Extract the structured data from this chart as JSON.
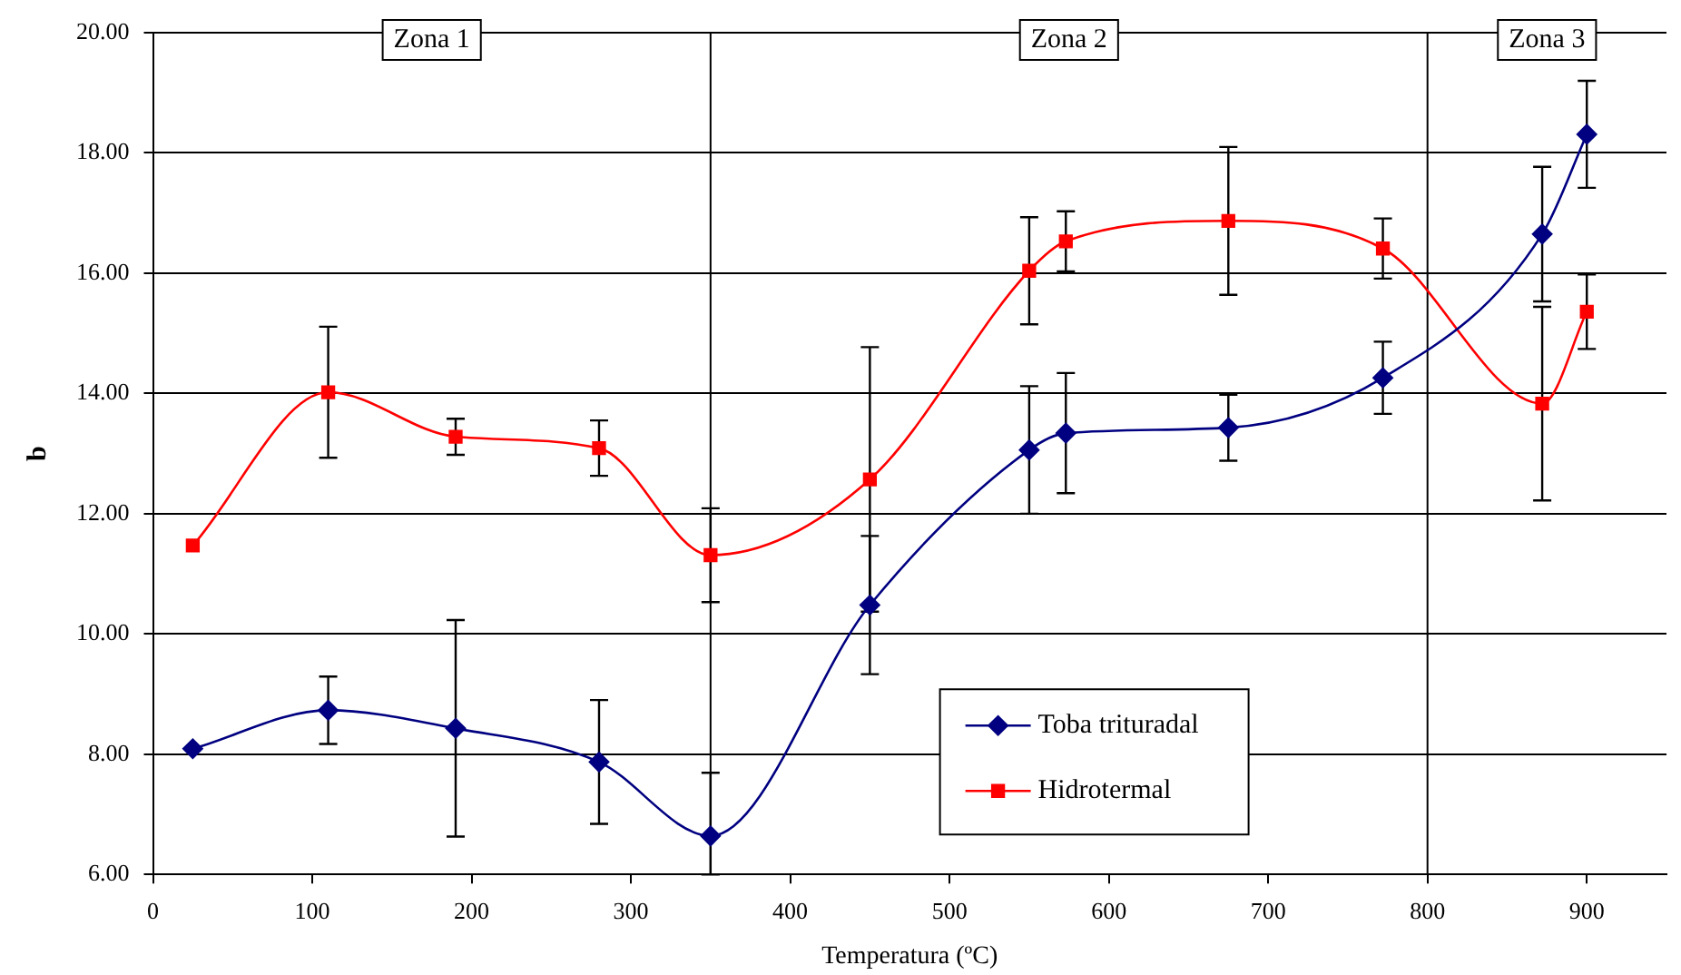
{
  "chart_data": {
    "type": "line",
    "xlabel": "Temperatura (ºC)",
    "ylabel": "b",
    "x": [
      25,
      110,
      190,
      280,
      350,
      450,
      550,
      573,
      675,
      772,
      872,
      900
    ],
    "xlim": [
      0,
      950
    ],
    "xticks": [
      0,
      100,
      200,
      300,
      400,
      500,
      600,
      700,
      800,
      900
    ],
    "ylim": [
      6,
      20
    ],
    "yticks": [
      {
        "value": 6,
        "label": "6.00"
      },
      {
        "value": 8,
        "label": "8.00"
      },
      {
        "value": 10,
        "label": "10.00"
      },
      {
        "value": 12,
        "label": "12.00"
      },
      {
        "value": 14,
        "label": "14.00"
      },
      {
        "value": 16,
        "label": "16.00"
      },
      {
        "value": 18,
        "label": "18.00"
      },
      {
        "value": 20,
        "label": "20.00"
      }
    ],
    "grid": "y",
    "legend": "bottom",
    "line_style": "solid",
    "series": [
      {
        "name": "Toba trituradal",
        "color": "#000080",
        "marker": "diamond",
        "values": [
          8.09,
          8.73,
          8.43,
          7.87,
          6.64,
          10.48,
          13.06,
          13.34,
          13.43,
          14.26,
          16.65,
          18.31
        ],
        "errors": [
          null,
          0.56,
          1.8,
          1.03,
          [
            6,
            7.69
          ],
          1.15,
          1.06,
          1.0,
          0.55,
          0.6,
          1.12,
          0.89
        ]
      },
      {
        "name": "Hidrotermal",
        "color": "#ff0000",
        "marker": "square",
        "values": [
          11.47,
          14.02,
          13.28,
          13.09,
          11.31,
          12.57,
          16.04,
          16.53,
          16.87,
          16.41,
          13.83,
          15.36
        ],
        "errors": [
          null,
          1.09,
          0.3,
          0.46,
          0.78,
          2.2,
          0.89,
          0.5,
          1.23,
          0.5,
          1.61,
          0.62
        ]
      }
    ],
    "ref_lines": [
      {
        "axis": "x",
        "value": 350,
        "color": "#000000"
      },
      {
        "axis": "x",
        "value": 800,
        "color": "#000000"
      }
    ],
    "annotations": [
      "Zona 1",
      "Zona 2",
      "Zona 3"
    ]
  }
}
